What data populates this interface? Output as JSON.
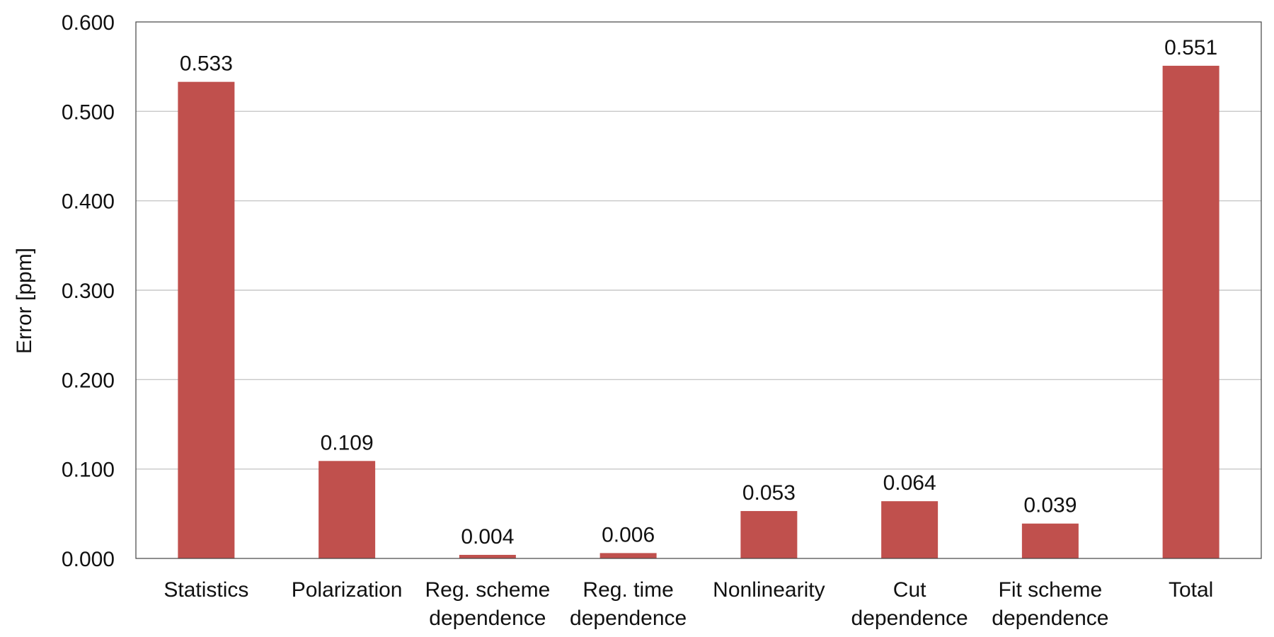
{
  "chart_data": {
    "type": "bar",
    "title": "",
    "xlabel": "",
    "ylabel": "Error [ppm]",
    "ylim": [
      0,
      0.6
    ],
    "yticks": [
      "0.000",
      "0.100",
      "0.200",
      "0.300",
      "0.400",
      "0.500",
      "0.600"
    ],
    "grid": true,
    "legend": "none",
    "bar_color": "#C0504D",
    "categories": [
      [
        "Statistics"
      ],
      [
        "Polarization"
      ],
      [
        "Reg. scheme",
        "dependence"
      ],
      [
        "Reg. time",
        "dependence"
      ],
      [
        "Nonlinearity"
      ],
      [
        "Cut",
        "dependence"
      ],
      [
        "Fit scheme",
        "dependence"
      ],
      [
        "Total"
      ]
    ],
    "values": [
      0.533,
      0.109,
      0.004,
      0.006,
      0.053,
      0.064,
      0.039,
      0.551
    ],
    "value_labels": [
      "0.533",
      "0.109",
      "0.004",
      "0.006",
      "0.053",
      "0.064",
      "0.039",
      "0.551"
    ]
  }
}
